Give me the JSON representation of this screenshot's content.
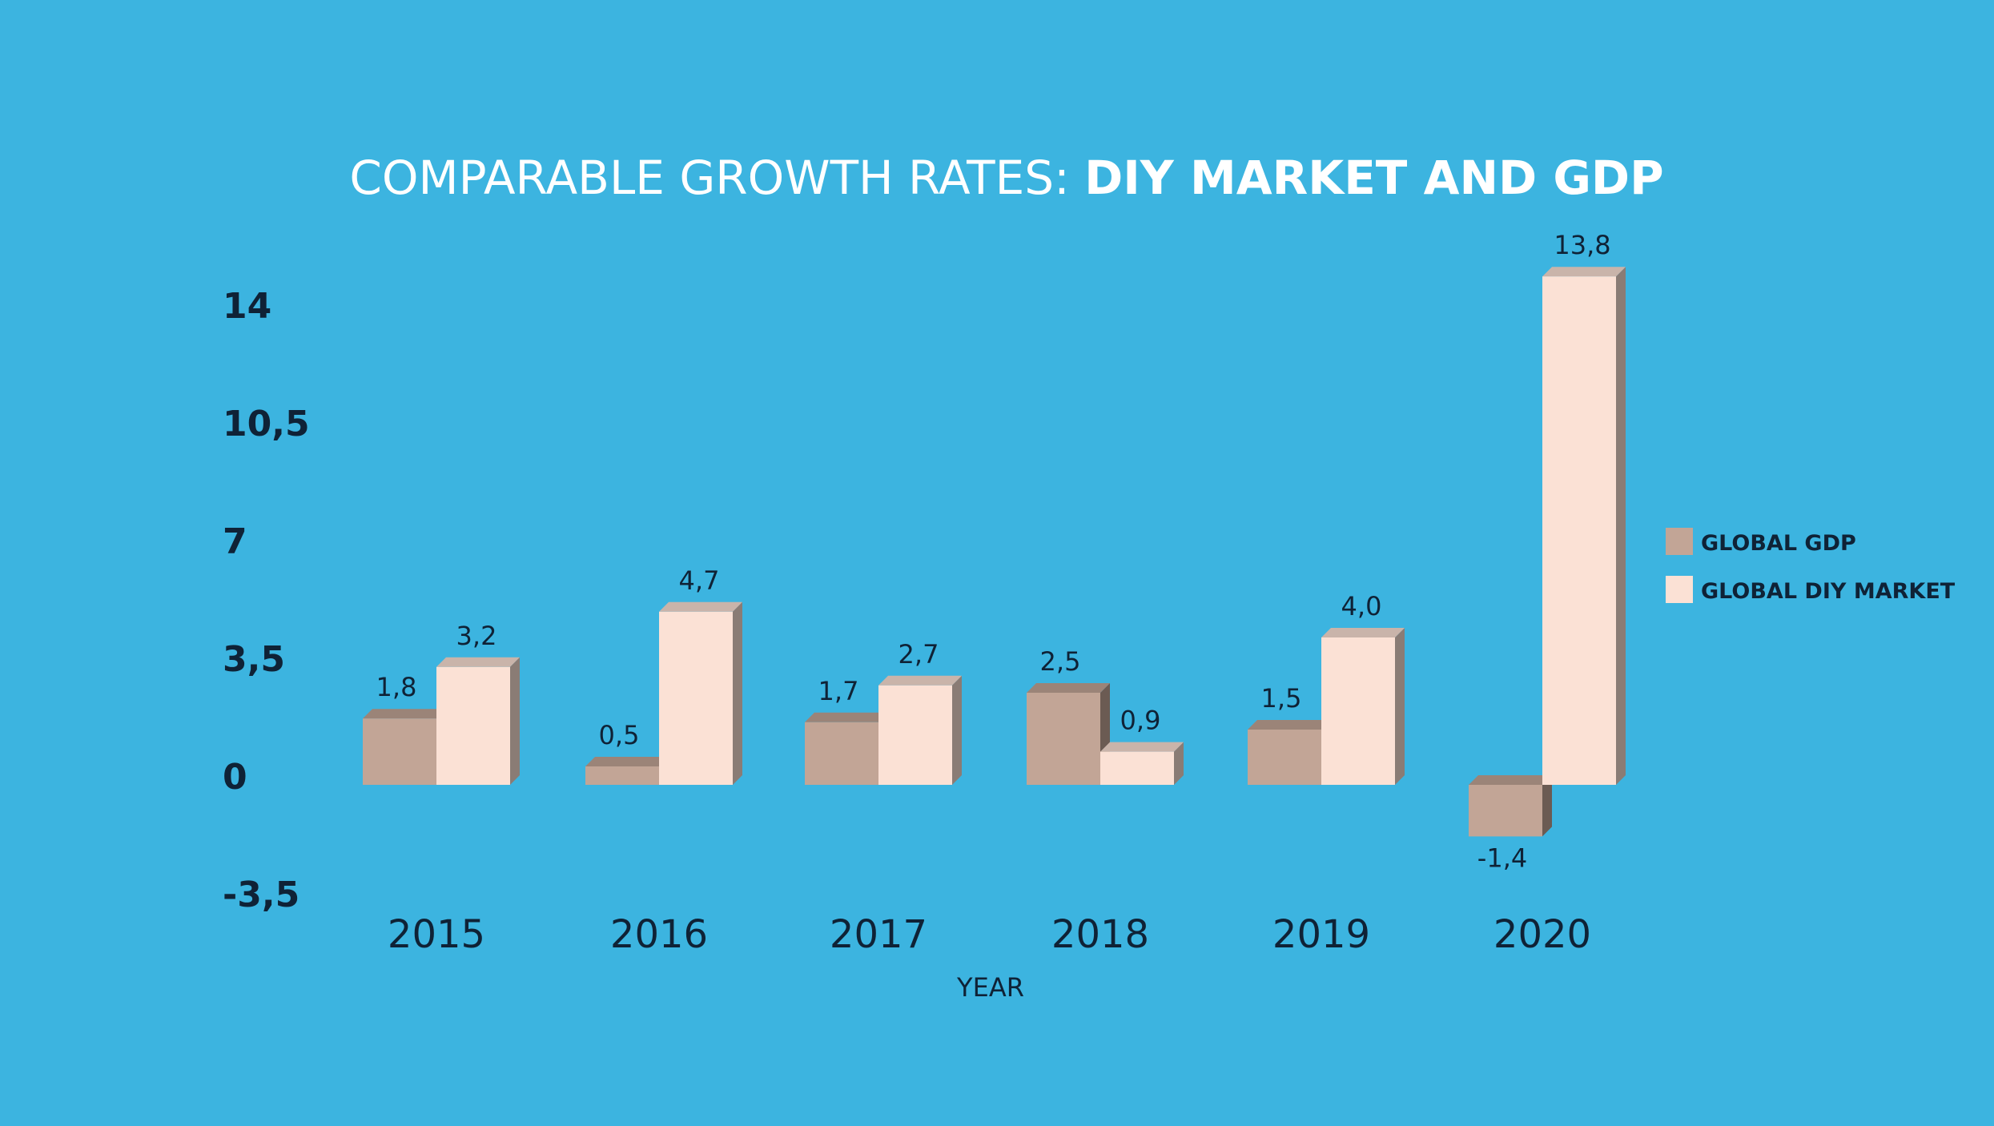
{
  "chart_data": {
    "type": "bar",
    "title_regular": "COMPARABLE GROWTH RATES: ",
    "title_bold": "DIY MARKET AND GDP",
    "xlabel": "YEAR",
    "ylabel": "",
    "categories": [
      "2015",
      "2016",
      "2017",
      "2018",
      "2019",
      "2020"
    ],
    "yticks": [
      "14",
      "10,5",
      "7",
      "3,5",
      "0",
      "-3,5"
    ],
    "ytick_values": [
      14,
      10.5,
      7,
      3.5,
      0,
      -3.5
    ],
    "ylim": [
      -3.5,
      14
    ],
    "grid": false,
    "legend_position": "right",
    "series": [
      {
        "name": "GLOBAL GDP",
        "color": "#c2a596",
        "values": [
          1.8,
          0.5,
          1.7,
          2.5,
          1.5,
          -1.4
        ],
        "labels": [
          "1,8",
          "0,5",
          "1,7",
          "2,5",
          "1,5",
          "-1,4"
        ]
      },
      {
        "name": "GLOBAL DIY MARKET",
        "color": "#fbe1d5",
        "values": [
          3.2,
          4.7,
          2.7,
          0.9,
          4.0,
          13.8
        ],
        "labels": [
          "3,2",
          "4,7",
          "2,7",
          "0,9",
          "4,0",
          "13,8"
        ]
      }
    ]
  },
  "colors": {
    "background": "#3cb4e0",
    "text": "#0f2236",
    "title": "#ffffff"
  }
}
